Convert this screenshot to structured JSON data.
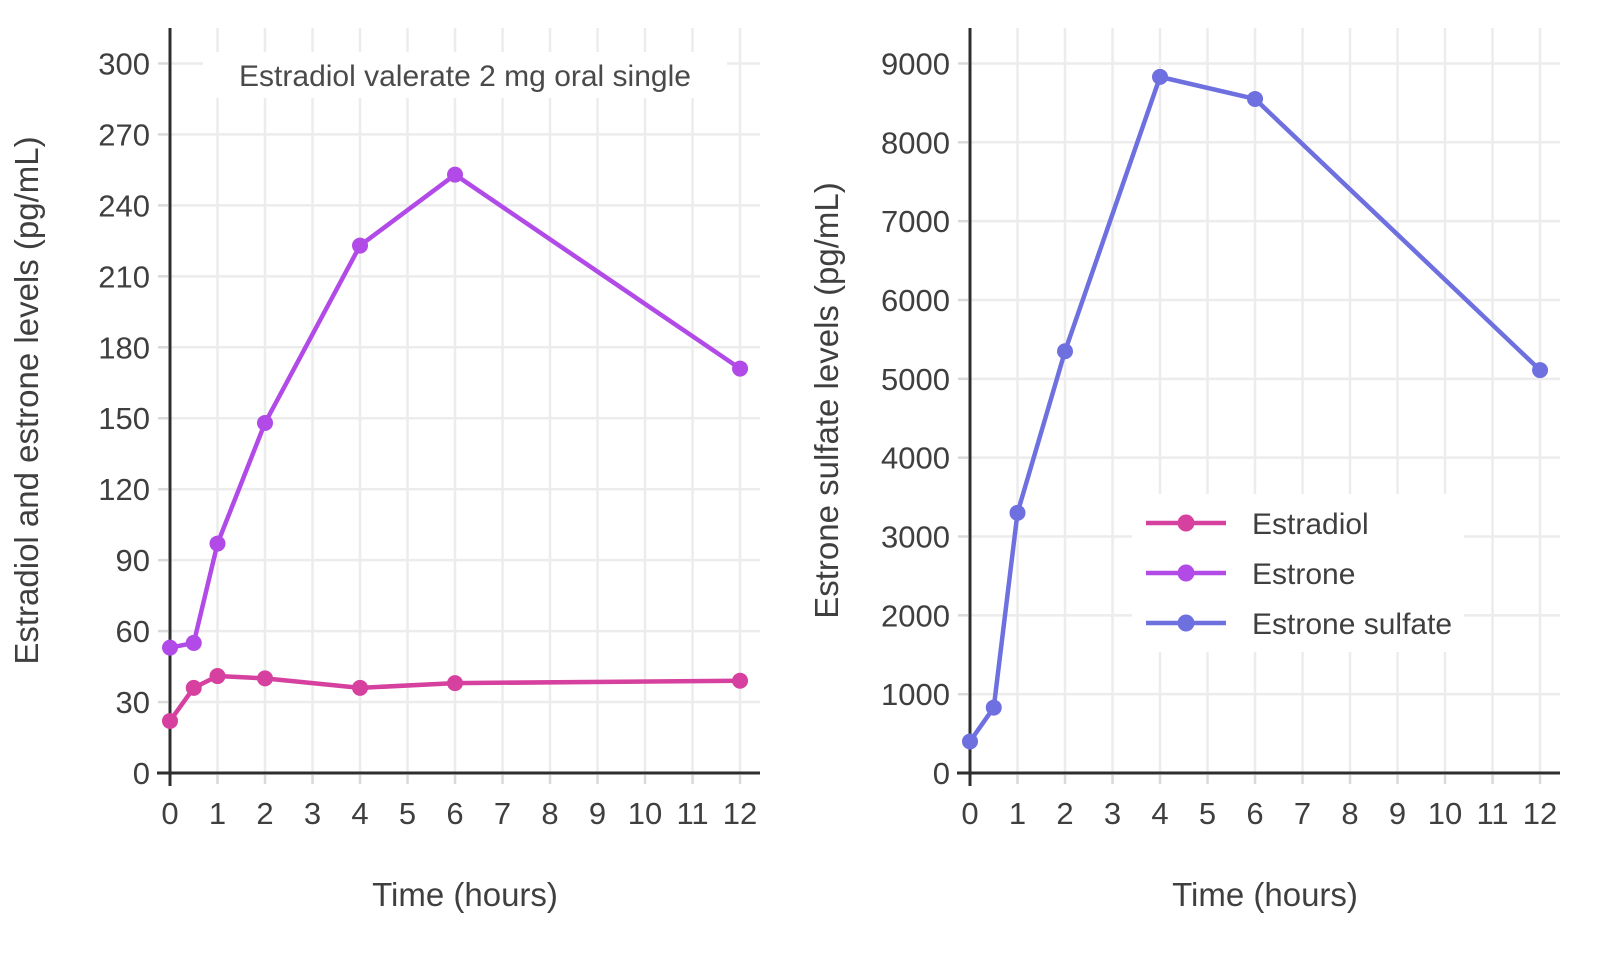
{
  "figure_title": "",
  "style": {
    "background": "#ffffff",
    "grid_color": "#ececec",
    "axis_color": "#2e2e2e",
    "minor_tick_color": "#d9d9d9",
    "tick_label_color": "#3f3f3f",
    "axis_title_color": "#3f3f3f",
    "annotation_color": "#4a4a4a",
    "legend_background": "#ffffff"
  },
  "chart_data": [
    {
      "type": "line",
      "title": "Estradiol valerate 2 mg oral single",
      "xlabel": "Time (hours)",
      "ylabel": "Estradiol and estrone levels (pg/mL)",
      "x": [
        0,
        0.5,
        1,
        2,
        4,
        6,
        12
      ],
      "series": [
        {
          "name": "Estradiol",
          "color": "#d6409f",
          "values": [
            22,
            36,
            41,
            40,
            36,
            38,
            39
          ]
        },
        {
          "name": "Estrone",
          "color": "#b14ae6",
          "values": [
            53,
            55,
            97,
            148,
            223,
            253,
            171
          ]
        }
      ],
      "x_ticks": [
        0,
        1,
        2,
        3,
        4,
        5,
        6,
        7,
        8,
        9,
        10,
        11,
        12
      ],
      "y_ticks": [
        0,
        30,
        60,
        90,
        120,
        150,
        180,
        210,
        240,
        270,
        300
      ],
      "xlim": [
        0,
        12.42
      ],
      "ylim": [
        0,
        315
      ],
      "grid": true,
      "legend": null
    },
    {
      "type": "line",
      "title": "",
      "xlabel": "Time (hours)",
      "ylabel": "Estrone sulfate levels (pg/mL)",
      "x": [
        0,
        0.5,
        1,
        2,
        4,
        6,
        12
      ],
      "series": [
        {
          "name": "Estrone sulfate",
          "color": "#6e70e0",
          "values": [
            400,
            830,
            3300,
            5350,
            8830,
            8550,
            5110
          ]
        }
      ],
      "x_ticks": [
        0,
        1,
        2,
        3,
        4,
        5,
        6,
        7,
        8,
        9,
        10,
        11,
        12
      ],
      "y_ticks": [
        0,
        1000,
        2000,
        3000,
        4000,
        5000,
        6000,
        7000,
        8000,
        9000
      ],
      "xlim": [
        0,
        12.42
      ],
      "ylim": [
        0,
        9450
      ],
      "grid": true,
      "legend": {
        "position": "middle-right",
        "entries": [
          {
            "label": "Estradiol",
            "color": "#d6409f"
          },
          {
            "label": "Estrone",
            "color": "#b14ae6"
          },
          {
            "label": "Estrone sulfate",
            "color": "#6e70e0"
          }
        ]
      }
    }
  ]
}
